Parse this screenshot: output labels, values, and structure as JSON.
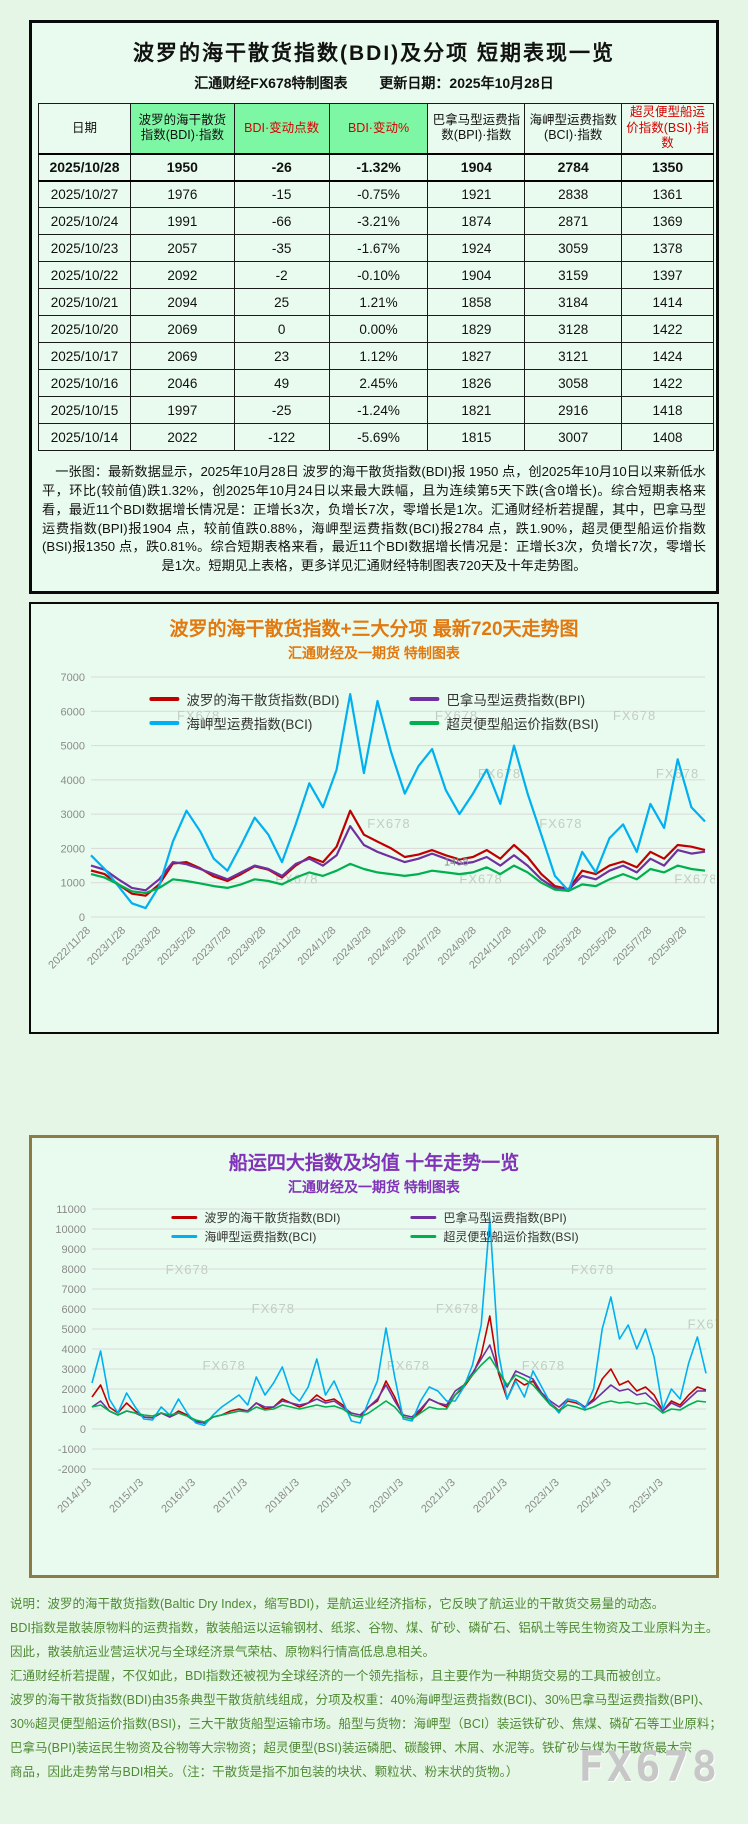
{
  "colors": {
    "page_bg": "#e5f6e7",
    "box_bg": "#e9fbee",
    "header_green": "#7ef7a4",
    "accent_red": "#d40000",
    "title_orange": "#e2790f",
    "title_purple": "#8033b8",
    "footer_green": "#4e8a33",
    "bdi_red": "#c00000",
    "bpi_purple": "#7030a0",
    "bci_blue": "#00b0f0",
    "bsi_green": "#00b050",
    "grid_gray": "#d9d9d9",
    "tick_gray": "#8a8a8a",
    "watermark_gray": "#c3cdc3"
  },
  "top_box": {
    "title": "波罗的海干散货指数(BDI)及分项  短期表现一览",
    "source": "汇通财经FX678特制图表",
    "update_date": "更新日期：2025年10月28日",
    "table": {
      "headers": [
        "日期",
        "波罗的海干散货指数(BDI)·指数",
        "BDI·变动点数",
        "BDI·变动%",
        "巴拿马型运费指数(BPI)·指数",
        "海岬型运费指数(BCI)·指数",
        "超灵便型船运价指数(BSI)·指数"
      ],
      "header_green_indices": [
        1,
        2,
        3
      ],
      "header_red_indices": [
        2,
        3,
        6
      ],
      "rows": [
        [
          "2025/10/28",
          "1950",
          "-26",
          "-1.32%",
          "1904",
          "2784",
          "1350"
        ],
        [
          "2025/10/27",
          "1976",
          "-15",
          "-0.75%",
          "1921",
          "2838",
          "1361"
        ],
        [
          "2025/10/24",
          "1991",
          "-66",
          "-3.21%",
          "1874",
          "2871",
          "1369"
        ],
        [
          "2025/10/23",
          "2057",
          "-35",
          "-1.67%",
          "1924",
          "3059",
          "1378"
        ],
        [
          "2025/10/22",
          "2092",
          "-2",
          "-0.10%",
          "1904",
          "3159",
          "1397"
        ],
        [
          "2025/10/21",
          "2094",
          "25",
          "1.21%",
          "1858",
          "3184",
          "1414"
        ],
        [
          "2025/10/20",
          "2069",
          "0",
          "0.00%",
          "1829",
          "3128",
          "1422"
        ],
        [
          "2025/10/17",
          "2069",
          "23",
          "1.12%",
          "1827",
          "3121",
          "1424"
        ],
        [
          "2025/10/16",
          "2046",
          "49",
          "2.45%",
          "1826",
          "3058",
          "1422"
        ],
        [
          "2025/10/15",
          "1997",
          "-25",
          "-1.24%",
          "1821",
          "2916",
          "1418"
        ],
        [
          "2025/10/14",
          "2022",
          "-122",
          "-5.69%",
          "1815",
          "3007",
          "1408"
        ]
      ]
    },
    "summary": "　一张图：最新数据显示，2025年10月28日 波罗的海干散货指数(BDI)报 1950 点，创2025年10月10日以来新低水平，环比(较前值)跌1.32%，创2025年10月24日以来最大跌幅，且为连续第5天下跌(含0增长)。综合短期表格来看，最近11个BDI数据增长情况是：正增长3次，负增长7次，零增长是1次。汇通财经析若提醒，其中，巴拿马型运费指数(BPI)报1904 点，较前值跌0.88%，海岬型运费指数(BCI)报2784 点，跌1.90%，超灵便型船运价指数(BSI)报1350 点，跌0.81%。综合短期表格来看，最近11个BDI数据增长情况是：正增长3次，负增长7次，零增长是1次。短期见上表格，更多详见汇通财经特制图表720天及十年走势图。"
  },
  "chart_data": [
    {
      "type": "line",
      "title": "波罗的海干散货指数+三大分项  最新720天走势图",
      "subtitle": "汇通财经及一期货  特制图表",
      "ylim": [
        0,
        7000
      ],
      "ytick_step": 1000,
      "grid": true,
      "legend_position": "top-center",
      "x_tick_labels": [
        "2022/11/28",
        "2023/1/28",
        "2023/3/28",
        "2023/5/28",
        "2023/7/28",
        "2023/9/28",
        "2023/11/28",
        "2024/1/28",
        "2024/3/28",
        "2024/5/28",
        "2024/7/28",
        "2024/9/28",
        "2024/11/28",
        "2025/1/28",
        "2025/3/28",
        "2025/5/28",
        "2025/7/28",
        "2025/9/28"
      ],
      "x_label_span_frac": 0.971,
      "series": [
        {
          "name": "波罗的海干散货指数(BDI)",
          "color": "#c00000",
          "values": [
            1355,
            1250,
            950,
            680,
            620,
            950,
            1560,
            1600,
            1420,
            1180,
            1050,
            1250,
            1480,
            1380,
            1150,
            1500,
            1750,
            1600,
            2050,
            3100,
            2400,
            2200,
            2000,
            1750,
            1820,
            1950,
            1800,
            1680,
            1750,
            1950,
            1700,
            2100,
            1750,
            1250,
            900,
            810,
            1350,
            1250,
            1500,
            1620,
            1450,
            1900,
            1700,
            2100,
            2050,
            1950
          ]
        },
        {
          "name": "巴拿马型运费指数(BPI)",
          "color": "#7030a0",
          "values": [
            1500,
            1380,
            1100,
            850,
            780,
            1100,
            1600,
            1540,
            1400,
            1250,
            1100,
            1300,
            1500,
            1400,
            1200,
            1550,
            1700,
            1500,
            1800,
            2650,
            2100,
            1900,
            1750,
            1600,
            1700,
            1850,
            1700,
            1550,
            1600,
            1750,
            1500,
            1800,
            1500,
            1100,
            850,
            800,
            1200,
            1100,
            1350,
            1500,
            1300,
            1700,
            1500,
            1950,
            1850,
            1904
          ]
        },
        {
          "name": "海岬型运费指数(BCI)",
          "color": "#00b0f0",
          "values": [
            1800,
            1400,
            900,
            400,
            260,
            900,
            2200,
            3100,
            2500,
            1700,
            1350,
            2100,
            2900,
            2400,
            1600,
            2700,
            3900,
            3200,
            4300,
            6500,
            4200,
            6300,
            4800,
            3600,
            4400,
            4900,
            3700,
            3000,
            3600,
            4300,
            3300,
            5000,
            3600,
            2400,
            1200,
            760,
            1900,
            1300,
            2300,
            2700,
            1900,
            3300,
            2600,
            4600,
            3200,
            2784
          ]
        },
        {
          "name": "超灵便型船运价指数(BSI)",
          "color": "#00b050",
          "values": [
            1250,
            1150,
            950,
            750,
            700,
            850,
            1100,
            1050,
            980,
            900,
            850,
            950,
            1100,
            1050,
            950,
            1150,
            1300,
            1200,
            1350,
            1550,
            1400,
            1300,
            1250,
            1200,
            1250,
            1350,
            1300,
            1250,
            1300,
            1450,
            1250,
            1500,
            1300,
            1000,
            800,
            760,
            950,
            900,
            1100,
            1250,
            1100,
            1400,
            1300,
            1500,
            1400,
            1350
          ]
        }
      ],
      "annotations": [
        {
          "text": "1458",
          "x_frac": 0.575,
          "y": 1500,
          "color": "#8a8a8a"
        }
      ],
      "watermarks": [
        [
          0.14,
          0.18
        ],
        [
          0.56,
          0.18
        ],
        [
          0.85,
          0.18
        ],
        [
          0.63,
          0.42
        ],
        [
          0.92,
          0.42
        ],
        [
          0.45,
          0.63
        ],
        [
          0.73,
          0.63
        ],
        [
          0.3,
          0.86
        ],
        [
          0.6,
          0.86
        ],
        [
          0.95,
          0.86
        ]
      ],
      "watermark_text": "FX678"
    },
    {
      "type": "line",
      "title": "船运四大指数及均值 十年走势一览",
      "subtitle": "汇通财经及一期货 特制图表",
      "ylim": [
        -2000,
        11000
      ],
      "ytick_step": 1000,
      "grid": true,
      "legend_position": "top-center",
      "x_tick_labels": [
        "2014/1/3",
        "2015/1/3",
        "2016/1/3",
        "2017/1/3",
        "2018/1/3",
        "2019/1/3",
        "2020/1/3",
        "2021/1/3",
        "2022/1/3",
        "2023/1/3",
        "2024/1/3",
        "2025/1/3"
      ],
      "x_label_span_frac": 0.931,
      "series": [
        {
          "name": "波罗的海干散货指数(BDI)",
          "color": "#c00000",
          "values": [
            1600,
            2200,
            1100,
            800,
            1300,
            900,
            600,
            560,
            800,
            600,
            900,
            700,
            400,
            290,
            600,
            700,
            900,
            1000,
            900,
            1300,
            1000,
            1100,
            1500,
            1300,
            1100,
            1300,
            1700,
            1400,
            1500,
            1200,
            700,
            600,
            1100,
            1400,
            2400,
            1600,
            600,
            500,
            900,
            1500,
            1300,
            1100,
            1700,
            2100,
            2700,
            3700,
            5650,
            2800,
            1500,
            2500,
            2200,
            2400,
            1700,
            1300,
            900,
            1400,
            1300,
            1100,
            1500,
            2500,
            3000,
            2200,
            2400,
            1900,
            2100,
            1700,
            900,
            1400,
            1200,
            1700,
            2100,
            1950
          ]
        },
        {
          "name": "巴拿马型运费指数(BPI)",
          "color": "#7030a0",
          "values": [
            1100,
            1400,
            900,
            700,
            900,
            800,
            600,
            550,
            800,
            600,
            800,
            650,
            350,
            300,
            600,
            700,
            800,
            900,
            900,
            1300,
            1100,
            1100,
            1400,
            1300,
            1200,
            1300,
            1500,
            1300,
            1400,
            1100,
            800,
            700,
            1100,
            1500,
            2200,
            1400,
            700,
            600,
            1000,
            1500,
            1300,
            1200,
            1900,
            2200,
            2800,
            3500,
            4200,
            2900,
            2100,
            2900,
            2700,
            2500,
            1800,
            1400,
            1100,
            1500,
            1400,
            1100,
            1400,
            1800,
            2200,
            1900,
            2000,
            1700,
            1800,
            1400,
            900,
            1300,
            1100,
            1500,
            1900,
            1904
          ]
        },
        {
          "name": "海岬型运费指数(BCI)",
          "color": "#00b0f0",
          "values": [
            2300,
            3900,
            1500,
            800,
            1800,
            1100,
            500,
            450,
            1100,
            700,
            1500,
            800,
            300,
            180,
            700,
            1100,
            1400,
            1700,
            1200,
            2600,
            1700,
            2300,
            3100,
            1800,
            1400,
            2100,
            3500,
            1700,
            2400,
            1400,
            400,
            300,
            1400,
            2400,
            5050,
            2600,
            500,
            400,
            1400,
            2100,
            1900,
            1400,
            1400,
            2100,
            3200,
            5200,
            10500,
            3800,
            1500,
            2400,
            1600,
            2900,
            2100,
            1300,
            800,
            1500,
            1400,
            1000,
            2000,
            5000,
            6600,
            4500,
            5200,
            4000,
            5000,
            3600,
            1000,
            2000,
            1500,
            3300,
            4600,
            2784
          ]
        },
        {
          "name": "超灵便型船运价指数(BSI)",
          "color": "#00b050",
          "values": [
            1100,
            1200,
            900,
            700,
            900,
            800,
            700,
            650,
            800,
            700,
            800,
            650,
            450,
            350,
            600,
            700,
            800,
            900,
            850,
            1100,
            950,
            1000,
            1200,
            1100,
            1000,
            1100,
            1200,
            1100,
            1150,
            1000,
            700,
            600,
            800,
            1100,
            1400,
            1100,
            600,
            500,
            800,
            1100,
            1000,
            1000,
            1700,
            2200,
            2700,
            3200,
            3600,
            2900,
            2200,
            2700,
            2500,
            2200,
            1700,
            1200,
            900,
            1200,
            1100,
            950,
            1100,
            1300,
            1400,
            1300,
            1350,
            1250,
            1300,
            1150,
            800,
            1000,
            950,
            1200,
            1400,
            1350
          ]
        }
      ],
      "annotations": [],
      "watermarks": [
        [
          0.26,
          0.4
        ],
        [
          0.56,
          0.4
        ],
        [
          0.97,
          0.46
        ],
        [
          0.18,
          0.62
        ],
        [
          0.48,
          0.62
        ],
        [
          0.78,
          0.25
        ],
        [
          0.12,
          0.25
        ],
        [
          0.7,
          0.62
        ]
      ],
      "watermark_text": "FX678"
    }
  ],
  "footer": {
    "lines": [
      "说明：波罗的海干散货指数(Baltic Dry Index，缩写BDI)，是航运业经济指标，它反映了航运业的干散货交易量的动态。",
      "BDI指数是散装原物料的运费指数，散装船运以运输钢材、纸浆、谷物、煤、矿砂、磷矿石、铝矾土等民生物资及工业原料为主。",
      "因此，散装航运业营运状况与全球经济景气荣枯、原物料行情高低息息相关。",
      "汇通财经析若提醒，不仅如此，BDI指数还被视为全球经济的一个领先指标，且主要作为一种期货交易的工具而被创立。",
      "波罗的海干散货指数(BDI)由35条典型干散货航线组成，分项及权重：40%海岬型运费指数(BCI)、30%巴拿马型运费指数(BPI)、",
      "30%超灵便型船运价指数(BSI)，三大干散货船型运输市场。船型与货物：海岬型（BCI）装运铁矿砂、焦煤、磷矿石等工业原料；",
      "巴拿马(BPI)装运民生物资及谷物等大宗物资；超灵便型(BSI)装运磷肥、碳酸钾、木屑、水泥等。铁矿砂与煤为干散货最大宗",
      "商品，因此走势常与BDI相关。（注：干散货是指不加包装的块状、颗粒状、粉末状的货物。）"
    ],
    "watermark": "FX678"
  }
}
